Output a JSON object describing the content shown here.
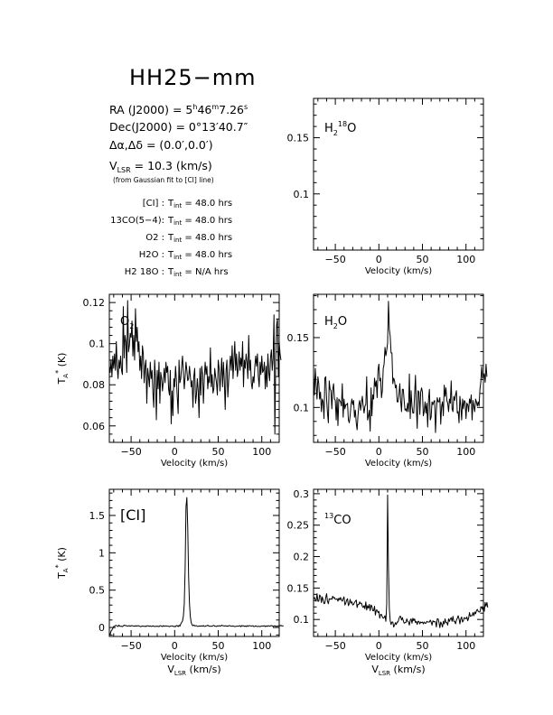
{
  "source": {
    "name": "HH25−mm",
    "ra_label": "RA (J2000)",
    "ra_h": "5",
    "ra_h_unit": "h",
    "ra_m": "46",
    "ra_m_unit": "m",
    "ra_s": "7.26",
    "ra_s_unit": "s",
    "dec_label": "Dec(J2000)",
    "dec_value": "0°13′40.7″",
    "offset_label": "Δα,Δδ",
    "offset_value": "(0.0′,0.0′)",
    "vlsr_symbol": "V",
    "vlsr_sub": "LSR",
    "vlsr_value": "10.3 (km/s)",
    "vlsr_note": "(from Gaussian fit to [CI] line)"
  },
  "integration": [
    {
      "line": "[CI] :",
      "tint": "48.0 hrs"
    },
    {
      "line": "13CO(5−4):",
      "tint": "48.0 hrs"
    },
    {
      "line": "O2 :",
      "tint": "48.0 hrs"
    },
    {
      "line": "H2O :",
      "tint": "48.0 hrs"
    },
    {
      "line": "H2 18O :",
      "tint": "N/A hrs"
    }
  ],
  "tint_symbol": "T",
  "tint_sub": "int",
  "chart_data": [
    {
      "id": "h2-18o",
      "type": "line",
      "label": "H2 18O",
      "xlim": [
        -75,
        120
      ],
      "ylim": [
        0.05,
        0.185
      ],
      "xticks": [
        -50,
        0,
        50,
        100
      ],
      "yticks": [
        0.1,
        0.15
      ],
      "xlabel": "Velocity (km/s)",
      "ylabel": "",
      "vlsr_axis": false,
      "series": []
    },
    {
      "id": "o2",
      "type": "line",
      "label": "O2",
      "xlim": [
        -75,
        120
      ],
      "ylim": [
        0.052,
        0.124
      ],
      "xticks": [
        -50,
        0,
        50,
        100
      ],
      "yticks": [
        0.06,
        0.08,
        0.1,
        0.12
      ],
      "xlabel": "Velocity (km/s)",
      "ylabel": "TA* (K)",
      "vlsr_axis": false,
      "series": [
        {
          "x0": -75,
          "dx": 1.0,
          "y": [
            0.089,
            0.086,
            0.092,
            0.084,
            0.094,
            0.088,
            0.095,
            0.087,
            0.101,
            0.089,
            0.083,
            0.092,
            0.088,
            0.094,
            0.087,
            0.085,
            0.118,
            0.093,
            0.104,
            0.101,
            0.086,
            0.121,
            0.096,
            0.099,
            0.105,
            0.103,
            0.111,
            0.094,
            0.104,
            0.092,
            0.117,
            0.101,
            0.108,
            0.096,
            0.101,
            0.087,
            0.094,
            0.083,
            0.099,
            0.095,
            0.081,
            0.089,
            0.092,
            0.071,
            0.088,
            0.084,
            0.079,
            0.091,
            0.083,
            0.087,
            0.076,
            0.069,
            0.092,
            0.083,
            0.063,
            0.087,
            0.078,
            0.091,
            0.071,
            0.086,
            0.083,
            0.077,
            0.082,
            0.088,
            0.081,
            0.091,
            0.086,
            0.089,
            0.078,
            0.075,
            0.087,
            0.061,
            0.077,
            0.065,
            0.083,
            0.079,
            0.089,
            0.082,
            0.074,
            0.066,
            0.092,
            0.081,
            0.083,
            0.089,
            0.094,
            0.086,
            0.078,
            0.084,
            0.091,
            0.087,
            0.082,
            0.083,
            0.089,
            0.084,
            0.079,
            0.082,
            0.069,
            0.084,
            0.088,
            0.071,
            0.075,
            0.083,
            0.077,
            0.064,
            0.088,
            0.075,
            0.089,
            0.085,
            0.071,
            0.083,
            0.091,
            0.085,
            0.089,
            0.078,
            0.084,
            0.081,
            0.098,
            0.079,
            0.085,
            0.076,
            0.078,
            0.088,
            0.084,
            0.081,
            0.075,
            0.092,
            0.088,
            0.077,
            0.085,
            0.093,
            0.079,
            0.091,
            0.082,
            0.068,
            0.087,
            0.092,
            0.074,
            0.082,
            0.089,
            0.094,
            0.087,
            0.099,
            0.083,
            0.092,
            0.101,
            0.087,
            0.095,
            0.084,
            0.088,
            0.096,
            0.087,
            0.093,
            0.089,
            0.101,
            0.079,
            0.092,
            0.088,
            0.095,
            0.091,
            0.083,
            0.104,
            0.087,
            0.092,
            0.081,
            0.078,
            0.084,
            0.081,
            0.089,
            0.094,
            0.089,
            0.095,
            0.084,
            0.079,
            0.091,
            0.085,
            0.094,
            0.086,
            0.087,
            0.091,
            0.078,
            0.089,
            0.079,
            0.095,
            0.086,
            0.082,
            0.093,
            0.097,
            0.087,
            0.093,
            0.114,
            0.056,
            0.093,
            0.109,
            0.112,
            0.084,
            0.101,
            0.095,
            0.092
          ]
        }
      ]
    },
    {
      "id": "h2o",
      "type": "line",
      "label": "H2O",
      "xlim": [
        -75,
        120
      ],
      "ylim": [
        0.075,
        0.181
      ],
      "xticks": [
        -50,
        0,
        50,
        100
      ],
      "yticks": [
        0.1,
        0.15
      ],
      "xlabel": "Velocity (km/s)",
      "ylabel": "",
      "vlsr_axis": false,
      "series": [
        {
          "x0": -75,
          "dx": 1.0,
          "y": [
            0.124,
            0.109,
            0.128,
            0.116,
            0.106,
            0.122,
            0.117,
            0.106,
            0.111,
            0.097,
            0.106,
            0.104,
            0.092,
            0.121,
            0.122,
            0.106,
            0.096,
            0.089,
            0.119,
            0.113,
            0.112,
            0.099,
            0.113,
            0.117,
            0.106,
            0.105,
            0.091,
            0.107,
            0.087,
            0.106,
            0.105,
            0.104,
            0.101,
            0.117,
            0.093,
            0.106,
            0.099,
            0.102,
            0.102,
            0.103,
            0.091,
            0.089,
            0.094,
            0.102,
            0.106,
            0.102,
            0.105,
            0.093,
            0.098,
            0.089,
            0.084,
            0.094,
            0.102,
            0.105,
            0.098,
            0.103,
            0.108,
            0.101,
            0.096,
            0.101,
            0.102,
            0.122,
            0.091,
            0.094,
            0.098,
            0.083,
            0.114,
            0.094,
            0.109,
            0.106,
            0.121,
            0.115,
            0.119,
            0.107,
            0.127,
            0.131,
            0.119,
            0.121,
            0.107,
            0.112,
            0.128,
            0.131,
            0.143,
            0.137,
            0.141,
            0.146,
            0.176,
            0.156,
            0.151,
            0.139,
            0.139,
            0.117,
            0.121,
            0.119,
            0.114,
            0.116,
            0.104,
            0.104,
            0.109,
            0.117,
            0.105,
            0.097,
            0.113,
            0.113,
            0.105,
            0.098,
            0.099,
            0.097,
            0.103,
            0.097,
            0.124,
            0.092,
            0.112,
            0.101,
            0.096,
            0.096,
            0.109,
            0.123,
            0.101,
            0.085,
            0.112,
            0.111,
            0.095,
            0.111,
            0.114,
            0.111,
            0.094,
            0.097,
            0.104,
            0.096,
            0.103,
            0.086,
            0.106,
            0.113,
            0.091,
            0.093,
            0.104,
            0.102,
            0.104,
            0.105,
            0.082,
            0.098,
            0.107,
            0.104,
            0.104,
            0.107,
            0.088,
            0.101,
            0.104,
            0.094,
            0.116,
            0.108,
            0.114,
            0.105,
            0.103,
            0.097,
            0.106,
            0.103,
            0.119,
            0.099,
            0.097,
            0.108,
            0.105,
            0.109,
            0.112,
            0.096,
            0.097,
            0.089,
            0.108,
            0.101,
            0.091,
            0.106,
            0.099,
            0.105,
            0.104,
            0.092,
            0.103,
            0.102,
            0.097,
            0.106,
            0.103,
            0.109,
            0.091,
            0.105,
            0.101,
            0.097,
            0.106,
            0.104,
            0.101,
            0.104,
            0.101,
            0.113,
            0.118,
            0.129,
            0.121,
            0.122,
            0.124,
            0.118,
            0.131,
            0.122
          ]
        }
      ]
    },
    {
      "id": "ci",
      "type": "line",
      "label": "[CI]",
      "xlim": [
        -75,
        120
      ],
      "ylim": [
        -0.12,
        1.85
      ],
      "xticks": [
        -50,
        0,
        50,
        100
      ],
      "yticks": [
        0,
        0.5,
        1,
        1.5
      ],
      "xlabel": "Velocity (km/s)",
      "ylabel": "TA* (K)",
      "vlsr_axis": true,
      "series": [
        {
          "x0": -75,
          "dx": 1.0,
          "y": [
            -0.083,
            -0.092,
            -0.046,
            -0.033,
            -0.013,
            0.014,
            0.015,
            0.027,
            0.027,
            0.022,
            0.013,
            0.032,
            0.018,
            0.016,
            0.017,
            0.011,
            0.021,
            0.032,
            0.025,
            0.027,
            0.021,
            0.019,
            0.022,
            0.025,
            0.016,
            0.024,
            0.025,
            0.021,
            0.021,
            0.016,
            0.025,
            0.017,
            0.024,
            0.022,
            0.023,
            0.016,
            0.011,
            0.016,
            0.021,
            0.018,
            0.014,
            0.019,
            0.013,
            0.021,
            0.023,
            0.021,
            0.016,
            0.021,
            0.014,
            0.016,
            0.022,
            0.018,
            0.012,
            0.016,
            0.018,
            0.016,
            0.017,
            0.011,
            0.023,
            0.024,
            0.016,
            0.013,
            0.025,
            0.019,
            0.016,
            0.023,
            0.019,
            0.018,
            0.017,
            0.011,
            0.017,
            0.021,
            0.021,
            0.021,
            0.011,
            0.016,
            0.011,
            0.027,
            0.024,
            0.012,
            0.029,
            0.017,
            0.048,
            0.067,
            0.087,
            0.153,
            0.311,
            0.783,
            1.615,
            1.74,
            1.34,
            0.683,
            0.32,
            0.143,
            0.065,
            0.034,
            0.024,
            0.035,
            0.021,
            0.024,
            0.024,
            0.016,
            0.015,
            0.021,
            0.018,
            0.021,
            0.022,
            0.017,
            0.027,
            0.015,
            0.016,
            0.022,
            0.024,
            0.031,
            0.021,
            0.019,
            0.016,
            0.018,
            0.018,
            0.024,
            0.029,
            0.017,
            0.017,
            0.013,
            0.023,
            0.018,
            0.025,
            0.019,
            0.021,
            0.031,
            0.024,
            0.023,
            0.018,
            0.024,
            0.019,
            0.021,
            0.015,
            0.023,
            0.026,
            0.021,
            0.018,
            0.017,
            0.023,
            0.016,
            0.012,
            0.015,
            0.017,
            0.017,
            0.017,
            0.021,
            0.024,
            0.011,
            0.026,
            0.021,
            0.023,
            0.015,
            0.021,
            0.012,
            0.024,
            0.015,
            0.025,
            0.023,
            0.022,
            0.018,
            0.022,
            0.023,
            0.011,
            0.015,
            0.023,
            0.016,
            0.012,
            0.016,
            0.016,
            0.011,
            0.017,
            0.021,
            0.019,
            0.021,
            0.023,
            0.012,
            0.022,
            0.014,
            0.024,
            0.022,
            0.017,
            0.023,
            0.025,
            0.024,
            0.013,
            0.021,
            0.023,
            0.015,
            0.018,
            0.014,
            0.024,
            0.024,
            0.022,
            0.028,
            0.022,
            0.022,
            0.021
          ]
        }
      ]
    },
    {
      "id": "13co",
      "type": "line",
      "label": "13CO",
      "xlim": [
        -75,
        120
      ],
      "ylim": [
        0.073,
        0.307
      ],
      "xticks": [
        -50,
        0,
        50,
        100
      ],
      "yticks": [
        0.1,
        0.15,
        0.2,
        0.25,
        0.3
      ],
      "xlabel": "Velocity (km/s)",
      "ylabel": "",
      "vlsr_axis": true,
      "series": [
        {
          "x0": -75,
          "dx": 1.0,
          "y": [
            0.132,
            0.135,
            0.132,
            0.129,
            0.141,
            0.129,
            0.129,
            0.139,
            0.137,
            0.127,
            0.136,
            0.131,
            0.125,
            0.126,
            0.135,
            0.141,
            0.129,
            0.125,
            0.133,
            0.132,
            0.133,
            0.132,
            0.137,
            0.134,
            0.135,
            0.132,
            0.132,
            0.133,
            0.129,
            0.134,
            0.131,
            0.135,
            0.131,
            0.129,
            0.133,
            0.136,
            0.123,
            0.126,
            0.131,
            0.133,
            0.122,
            0.125,
            0.132,
            0.126,
            0.128,
            0.123,
            0.124,
            0.127,
            0.129,
            0.131,
            0.119,
            0.124,
            0.124,
            0.128,
            0.125,
            0.126,
            0.121,
            0.119,
            0.122,
            0.117,
            0.128,
            0.115,
            0.122,
            0.118,
            0.124,
            0.114,
            0.123,
            0.121,
            0.114,
            0.114,
            0.121,
            0.107,
            0.115,
            0.115,
            0.111,
            0.113,
            0.102,
            0.108,
            0.108,
            0.104,
            0.102,
            0.103,
            0.106,
            0.097,
            0.124,
            0.298,
            0.182,
            0.117,
            0.098,
            0.092,
            0.096,
            0.096,
            0.088,
            0.091,
            0.095,
            0.092,
            0.096,
            0.096,
            0.101,
            0.105,
            0.105,
            0.099,
            0.103,
            0.098,
            0.094,
            0.095,
            0.095,
            0.101,
            0.097,
            0.096,
            0.091,
            0.099,
            0.101,
            0.094,
            0.102,
            0.098,
            0.101,
            0.095,
            0.097,
            0.092,
            0.097,
            0.097,
            0.093,
            0.096,
            0.095,
            0.096,
            0.093,
            0.096,
            0.094,
            0.094,
            0.097,
            0.096,
            0.096,
            0.096,
            0.099,
            0.096,
            0.091,
            0.098,
            0.096,
            0.097,
            0.096,
            0.088,
            0.101,
            0.101,
            0.095,
            0.087,
            0.096,
            0.093,
            0.088,
            0.097,
            0.093,
            0.101,
            0.095,
            0.095,
            0.091,
            0.101,
            0.097,
            0.101,
            0.103,
            0.097,
            0.105,
            0.097,
            0.097,
            0.093,
            0.099,
            0.102,
            0.106,
            0.101,
            0.093,
            0.101,
            0.104,
            0.096,
            0.098,
            0.103,
            0.102,
            0.101,
            0.104,
            0.098,
            0.102,
            0.111,
            0.105,
            0.106,
            0.106,
            0.111,
            0.106,
            0.112,
            0.109,
            0.114,
            0.116,
            0.113,
            0.112,
            0.112,
            0.119,
            0.119,
            0.116,
            0.121,
            0.113,
            0.127,
            0.121,
            0.127,
            0.119
          ]
        }
      ]
    }
  ]
}
